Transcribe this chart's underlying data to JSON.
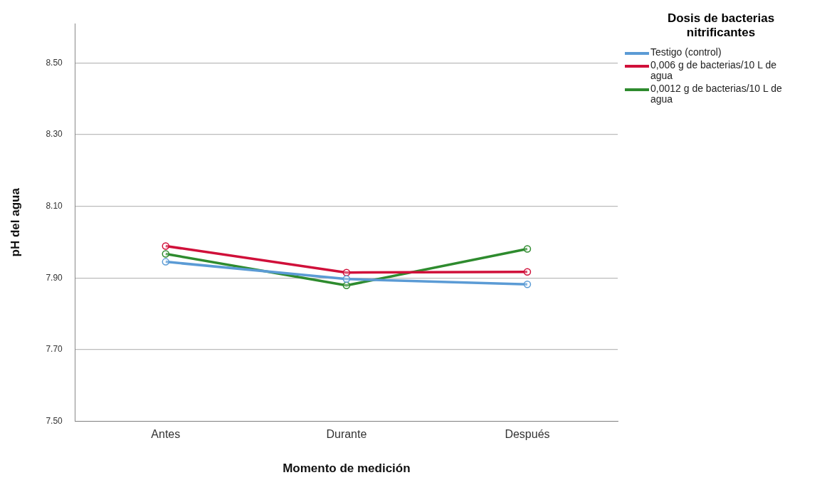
{
  "chart_data": {
    "type": "line",
    "xlabel": "Momento de medición",
    "ylabel": "pH del agua",
    "legend_title": "Dosis de bacterias nitrificantes",
    "categories": [
      "Antes",
      "Durante",
      "Después"
    ],
    "series": [
      {
        "name": "Testigo (control)",
        "color": "#5b9bd5",
        "values": [
          7.945,
          7.897,
          7.882
        ]
      },
      {
        "name": "0,006 g de bacterias/10 L de agua",
        "color": "#d0103a",
        "values": [
          7.989,
          7.915,
          7.917
        ]
      },
      {
        "name": "0,0012 g de bacterias/10 L de agua",
        "color": "#2e8b2e",
        "values": [
          7.967,
          7.879,
          7.981
        ]
      }
    ],
    "ylim": [
      7.5,
      8.61
    ],
    "yticks": [
      {
        "value": 7.5,
        "label": "7.50"
      },
      {
        "value": 7.7,
        "label": "7.70"
      },
      {
        "value": 7.9,
        "label": "7.90"
      },
      {
        "value": 8.1,
        "label": "8.10"
      },
      {
        "value": 8.3,
        "label": "8.30"
      },
      {
        "value": 8.5,
        "label": "8.50"
      }
    ],
    "grid": "y",
    "legend": "top right",
    "marker": "circle",
    "line_style": "solid"
  }
}
